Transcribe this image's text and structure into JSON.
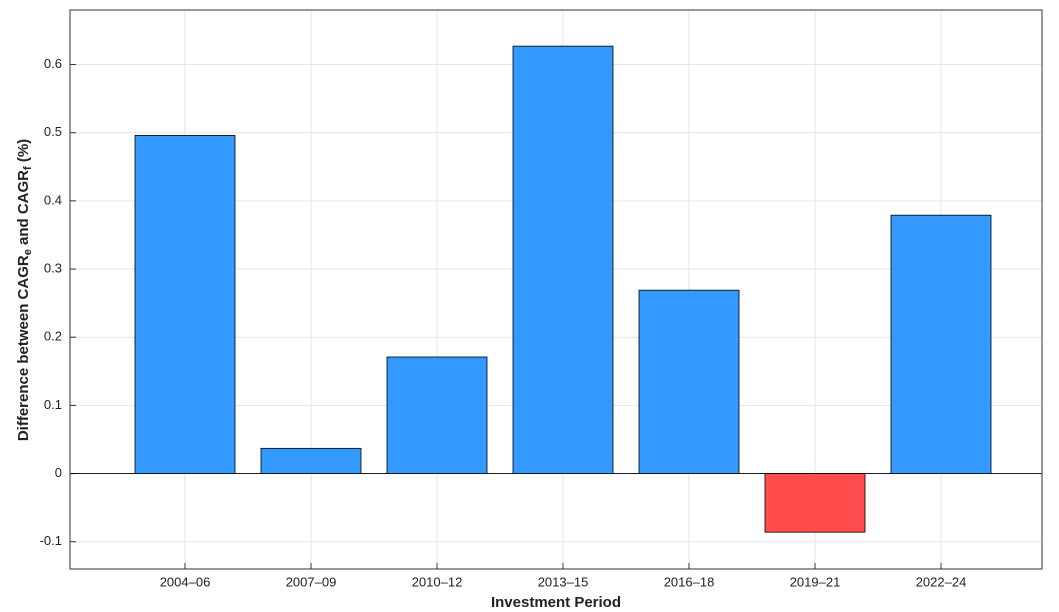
{
  "chart_data": {
    "type": "bar",
    "categories": [
      "2004–06",
      "2007–09",
      "2010–12",
      "2013–15",
      "2016–18",
      "2019–21",
      "2022–24"
    ],
    "values": [
      0.496,
      0.037,
      0.171,
      0.627,
      0.269,
      -0.086,
      0.379
    ],
    "colors": [
      "#3399ff",
      "#3399ff",
      "#3399ff",
      "#3399ff",
      "#3399ff",
      "#ff4d4d",
      "#3399ff"
    ],
    "xlabel": "Investment Period",
    "ylabel": [
      "Difference between CAGR",
      "e",
      " and CAGR",
      "f",
      " (%)"
    ],
    "ylim": [
      -0.14,
      0.68
    ],
    "yticks": [
      -0.1,
      0,
      0.1,
      0.2,
      0.3,
      0.4,
      0.5,
      0.6
    ],
    "grid": true
  }
}
